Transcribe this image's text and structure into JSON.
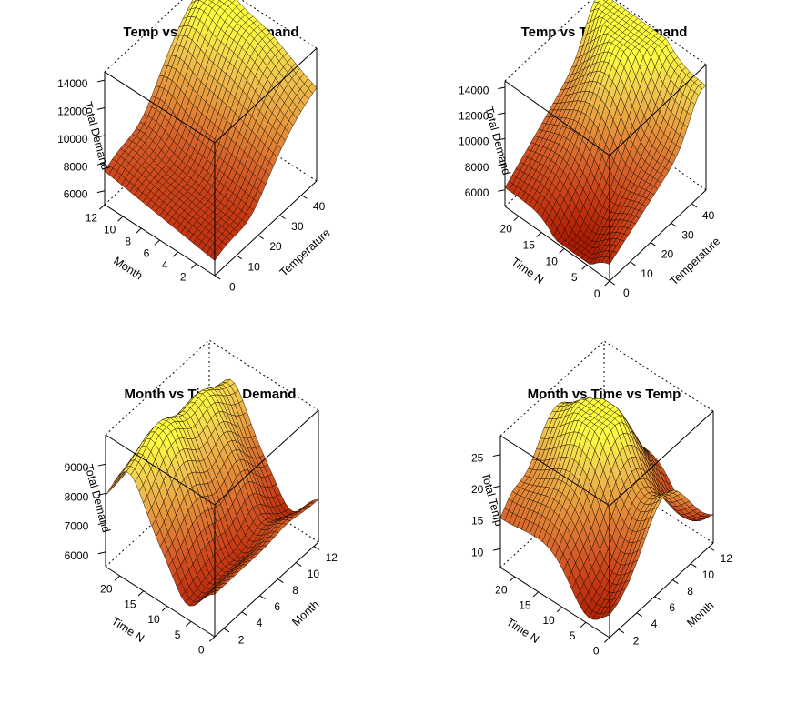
{
  "chart_data": [
    {
      "type": "surface3d",
      "title": "Temp vs Month vs Demand",
      "axes": {
        "x": {
          "label": "Temperature",
          "ticks": [
            "0",
            "10",
            "20",
            "30",
            "40"
          ],
          "range": [
            0,
            47
          ]
        },
        "y": {
          "label": "Month",
          "ticks": [
            "2",
            "4",
            "6",
            "8",
            "10",
            "12"
          ],
          "range": [
            0,
            12
          ]
        },
        "z": {
          "label": "Total Demand",
          "ticks": [
            "6000",
            "8000",
            "10000",
            "12000",
            "14000"
          ],
          "range": [
            5000,
            14600
          ]
        }
      },
      "colorscale": [
        "#a81800",
        "#c83a14",
        "#d8642c",
        "#e6963c",
        "#f0c850",
        "#ffff40"
      ],
      "grid": false
    },
    {
      "type": "surface3d",
      "title": "Temp vs Time vs Demand",
      "axes": {
        "x": {
          "label": "Temperature",
          "ticks": [
            "0",
            "10",
            "20",
            "30",
            "40"
          ],
          "range": [
            0,
            47
          ]
        },
        "y": {
          "label": "Time N",
          "ticks": [
            "0",
            "5",
            "10",
            "15",
            "20"
          ],
          "range": [
            0,
            23
          ]
        },
        "z": {
          "label": "Total Demand",
          "ticks": [
            "6000",
            "8000",
            "10000",
            "12000",
            "14000"
          ],
          "range": [
            4700,
            14500
          ]
        }
      },
      "colorscale": [
        "#a81800",
        "#c83a14",
        "#d8642c",
        "#e6963c",
        "#f0c850",
        "#ffff40"
      ],
      "grid": false
    },
    {
      "type": "surface3d",
      "title": "Month vs Time vs Demand",
      "axes": {
        "x": {
          "label": "Month",
          "ticks": [
            "2",
            "4",
            "6",
            "8",
            "10",
            "12"
          ],
          "range": [
            1,
            12.5
          ]
        },
        "y": {
          "label": "Time N",
          "ticks": [
            "0",
            "5",
            "10",
            "15",
            "20"
          ],
          "range": [
            0,
            23
          ]
        },
        "z": {
          "label": "Total Demand",
          "ticks": [
            "6000",
            "7000",
            "8000",
            "9000"
          ],
          "range": [
            5500,
            10000
          ]
        }
      },
      "colorscale": [
        "#a81800",
        "#c83a14",
        "#d8642c",
        "#e6963c",
        "#f0c850",
        "#ffff40"
      ],
      "grid": false
    },
    {
      "type": "surface3d",
      "title": "Month vs Time vs Temp",
      "axes": {
        "x": {
          "label": "Month",
          "ticks": [
            "2",
            "4",
            "6",
            "8",
            "10",
            "12"
          ],
          "range": [
            1,
            12.5
          ]
        },
        "y": {
          "label": "Time N",
          "ticks": [
            "0",
            "5",
            "10",
            "15",
            "20"
          ],
          "range": [
            0,
            23
          ]
        },
        "z": {
          "label": "Total Temp",
          "ticks": [
            "10",
            "15",
            "20",
            "25"
          ],
          "range": [
            7,
            28
          ]
        }
      },
      "colorscale": [
        "#a81800",
        "#c83a14",
        "#d8642c",
        "#e6963c",
        "#f0c850",
        "#ffff40"
      ],
      "grid": false
    }
  ]
}
